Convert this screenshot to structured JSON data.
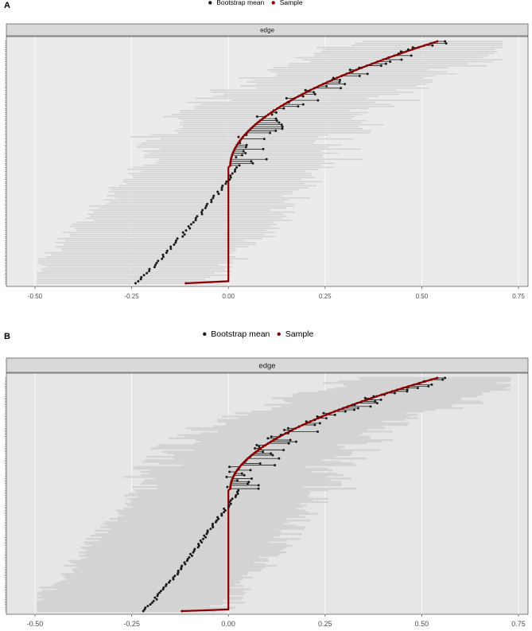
{
  "legend": {
    "bootstrap_label": "Bootstrap mean",
    "sample_label": "Sample"
  },
  "colors": {
    "bootstrap": "#1a1a1a",
    "sample": "#8b0000",
    "ci_band": "#d3d3d3",
    "panel_bg_a": "#ebebeb",
    "panel_bg_b": "#e6e6e6",
    "strip_bg": "#d9d9d9",
    "connector": "#000000"
  },
  "chart_data": [
    {
      "type": "line",
      "panel_label": "A",
      "strip_label": "edge",
      "xlim": [
        -0.5,
        0.75
      ],
      "x_ticks": [
        "-0.50",
        "-0.25",
        "0.00",
        "0.25",
        "0.50",
        "0.75"
      ],
      "y_axis": "edges ordered by sample weight (labels not legible)",
      "n_edges": 120,
      "grid": true,
      "legend_position": "top",
      "series": [
        {
          "name": "Bootstrap mean",
          "marker": "point",
          "shape": "sorted-edge-curve",
          "min": -0.24,
          "max": 0.56
        },
        {
          "name": "Sample",
          "marker": "point-line",
          "shape": "step-at-zero",
          "min": -0.11,
          "max": 0.54
        }
      ],
      "ci_band": {
        "lower_min": -0.49,
        "upper_max": 0.71
      }
    },
    {
      "type": "line",
      "panel_label": "B",
      "strip_label": "edge",
      "xlim": [
        -0.5,
        0.75
      ],
      "x_ticks": [
        "-0.50",
        "-0.25",
        "0.00",
        "0.25",
        "0.50",
        "0.75"
      ],
      "y_axis": "edges ordered by sample weight (labels not legible)",
      "n_edges": 140,
      "grid": true,
      "legend_position": "top",
      "series": [
        {
          "name": "Bootstrap mean",
          "marker": "point",
          "shape": "sorted-edge-curve",
          "min": -0.22,
          "max": 0.56
        },
        {
          "name": "Sample",
          "marker": "point-line",
          "shape": "step-at-zero",
          "min": -0.12,
          "max": 0.54
        }
      ],
      "ci_band": {
        "lower_min": -0.49,
        "upper_max": 0.73
      }
    }
  ]
}
